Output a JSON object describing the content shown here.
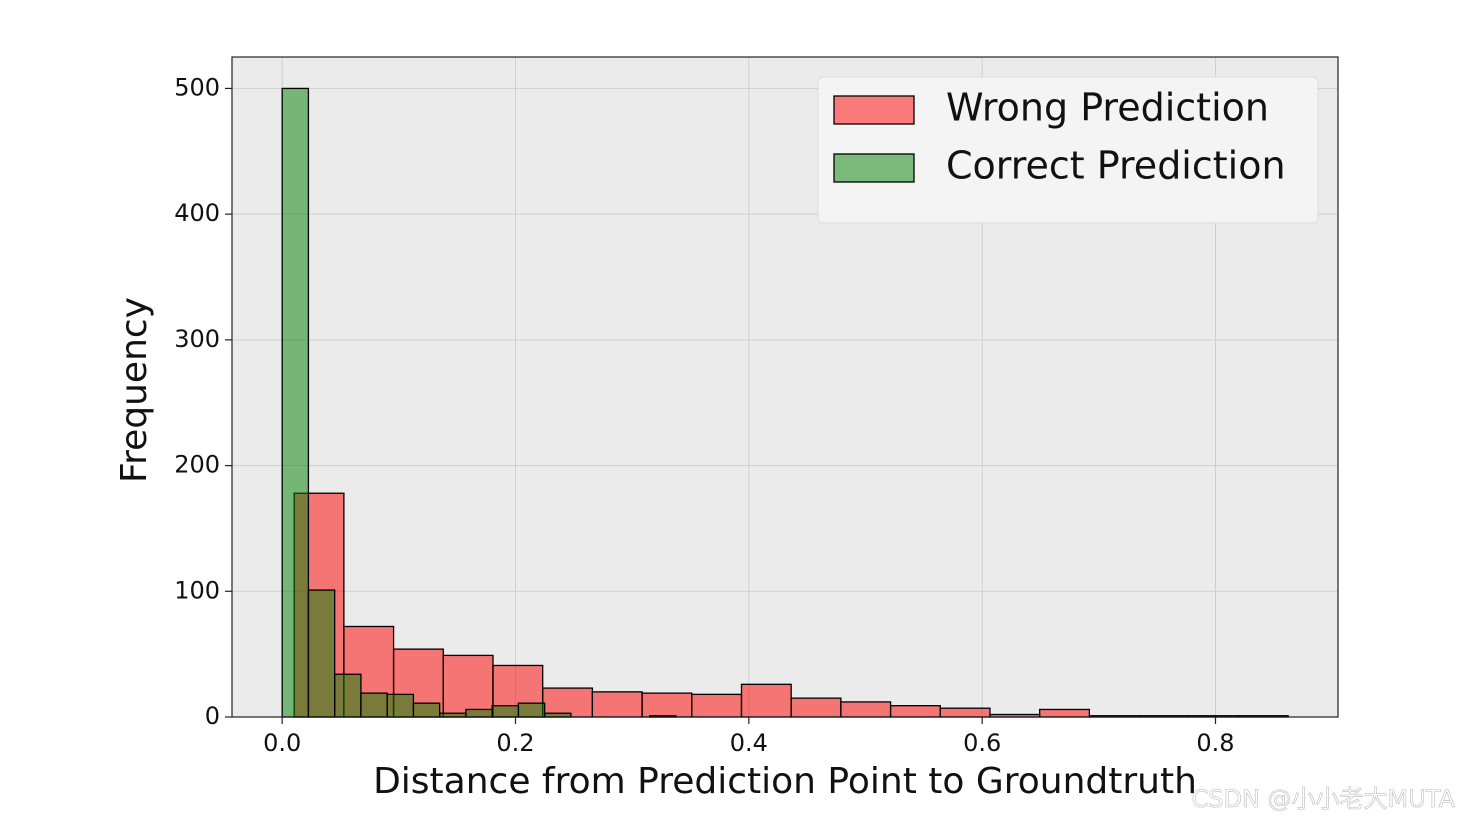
{
  "chart_data": {
    "type": "histogram",
    "xlabel": "Distance from Prediction Point to Groundtruth",
    "ylabel": "Frequency",
    "xlim": [
      -0.043,
      0.905
    ],
    "ylim": [
      0,
      525
    ],
    "xticks": [
      {
        "value": 0,
        "label": "0.0"
      },
      0.2,
      0.4,
      0.6,
      0.8
    ],
    "yticks": [
      0,
      100,
      200,
      300,
      400,
      500
    ],
    "grid": true,
    "alpha": 0.5,
    "legend": "upper right",
    "series": [
      {
        "name": "Wrong Prediction",
        "color": "red",
        "bins": [
          0.0103,
          0.0529,
          0.0955,
          0.1381,
          0.1807,
          0.2233,
          0.2659,
          0.3085,
          0.3511,
          0.3937,
          0.4363,
          0.4789,
          0.5215,
          0.5641,
          0.6067,
          0.6493,
          0.6919,
          0.7345,
          0.7771,
          0.8197,
          0.8623
        ],
        "values": [
          178,
          72,
          54,
          49,
          41,
          23,
          20,
          19,
          18,
          26,
          15,
          12,
          9,
          7,
          2,
          6,
          1,
          1,
          1,
          1
        ]
      },
      {
        "name": "Correct Prediction",
        "color": "green",
        "bins": [
          0,
          0.0225,
          0.045,
          0.0675,
          0.09,
          0.1125,
          0.135,
          0.1575,
          0.18,
          0.2025,
          0.225,
          0.2475,
          0.27,
          0.2925,
          0.315,
          0.3375
        ],
        "values": [
          500,
          101,
          34,
          19,
          18,
          11,
          3,
          6,
          9,
          11,
          3,
          0,
          0,
          0,
          1
        ]
      }
    ]
  },
  "watermark": "CSDN @小小老大MUTA"
}
